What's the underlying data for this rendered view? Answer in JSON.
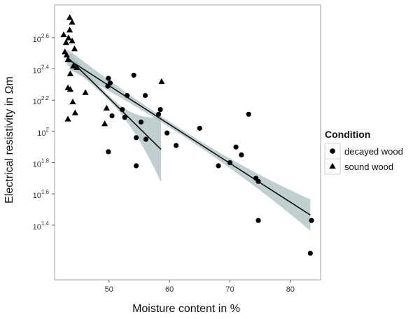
{
  "chart_data": {
    "type": "scatter",
    "xlabel": "Moisture content in %",
    "ylabel": "Electrical resistivity in Ωm",
    "xlim": [
      41,
      85
    ],
    "ylim": [
      1.05,
      2.81
    ],
    "x_ticks": [
      50,
      60,
      70,
      80
    ],
    "y_ticks": [
      {
        "value": 1.4,
        "base": "10",
        "exp": "1.4"
      },
      {
        "value": 1.6,
        "base": "10",
        "exp": "1.6"
      },
      {
        "value": 1.8,
        "base": "10",
        "exp": "1.8"
      },
      {
        "value": 2.0,
        "base": "10",
        "exp": "2"
      },
      {
        "value": 2.2,
        "base": "10",
        "exp": "2.2"
      },
      {
        "value": 2.4,
        "base": "10",
        "exp": "2.4"
      },
      {
        "value": 2.6,
        "base": "10",
        "exp": "2.6"
      }
    ],
    "y_scale": "log10",
    "legend": {
      "title": "Condition",
      "position": "right",
      "entries": [
        {
          "label": "decayed wood",
          "marker": "circle"
        },
        {
          "label": "sound wood",
          "marker": "triangle"
        }
      ]
    },
    "colors": {
      "points": "#000000",
      "band": "#a9bcbf",
      "line": "#111111",
      "frame": "#9aa3a6"
    },
    "series": [
      {
        "name": "decayed wood",
        "marker": "circle",
        "points": [
          [
            49.9,
            2.34
          ],
          [
            50.2,
            2.31
          ],
          [
            49.8,
            2.29
          ],
          [
            54.1,
            2.36
          ],
          [
            53.0,
            2.23
          ],
          [
            56.0,
            2.23
          ],
          [
            58.5,
            2.14
          ],
          [
            58.2,
            2.11
          ],
          [
            55.3,
            2.06
          ],
          [
            52.6,
            2.09
          ],
          [
            50.5,
            2.1
          ],
          [
            52.2,
            2.14
          ],
          [
            59.6,
            1.99
          ],
          [
            54.5,
            1.96
          ],
          [
            56.1,
            1.95
          ],
          [
            61.1,
            1.91
          ],
          [
            49.9,
            1.87
          ],
          [
            54.5,
            1.78
          ],
          [
            65.0,
            2.02
          ],
          [
            73.1,
            2.11
          ],
          [
            71.0,
            1.9
          ],
          [
            71.9,
            1.85
          ],
          [
            70.0,
            1.8
          ],
          [
            68.1,
            1.78
          ],
          [
            74.3,
            1.7
          ],
          [
            74.7,
            1.68
          ],
          [
            74.7,
            1.43
          ],
          [
            83.5,
            1.43
          ],
          [
            83.3,
            1.22
          ]
        ],
        "fit": {
          "x_start": 43.5,
          "y_start": 2.455,
          "x_end": 83.3,
          "y_end": 1.465,
          "band_half_width": [
            0.06,
            0.018,
            0.1
          ]
        }
      },
      {
        "name": "sound wood",
        "marker": "triangle",
        "points": [
          [
            43.5,
            2.73
          ],
          [
            43.9,
            2.7
          ],
          [
            42.5,
            2.62
          ],
          [
            43.5,
            2.65
          ],
          [
            43.9,
            2.58
          ],
          [
            43.3,
            2.6
          ],
          [
            42.9,
            2.57
          ],
          [
            44.3,
            2.53
          ],
          [
            43.0,
            2.49
          ],
          [
            42.7,
            2.51
          ],
          [
            43.2,
            2.46
          ],
          [
            44.1,
            2.42
          ],
          [
            43.6,
            2.37
          ],
          [
            44.7,
            2.41
          ],
          [
            43.2,
            2.28
          ],
          [
            43.6,
            2.27
          ],
          [
            44.0,
            2.19
          ],
          [
            44.4,
            2.12
          ],
          [
            43.2,
            2.08
          ],
          [
            46.1,
            2.25
          ],
          [
            49.6,
            2.15
          ],
          [
            49.3,
            2.05
          ],
          [
            58.7,
            2.32
          ]
        ],
        "fit": {
          "x_start": 43.0,
          "y_start": 2.48,
          "x_end": 58.6,
          "y_end": 1.885,
          "band_half_width": [
            0.05,
            0.015,
            0.21
          ]
        }
      }
    ]
  }
}
